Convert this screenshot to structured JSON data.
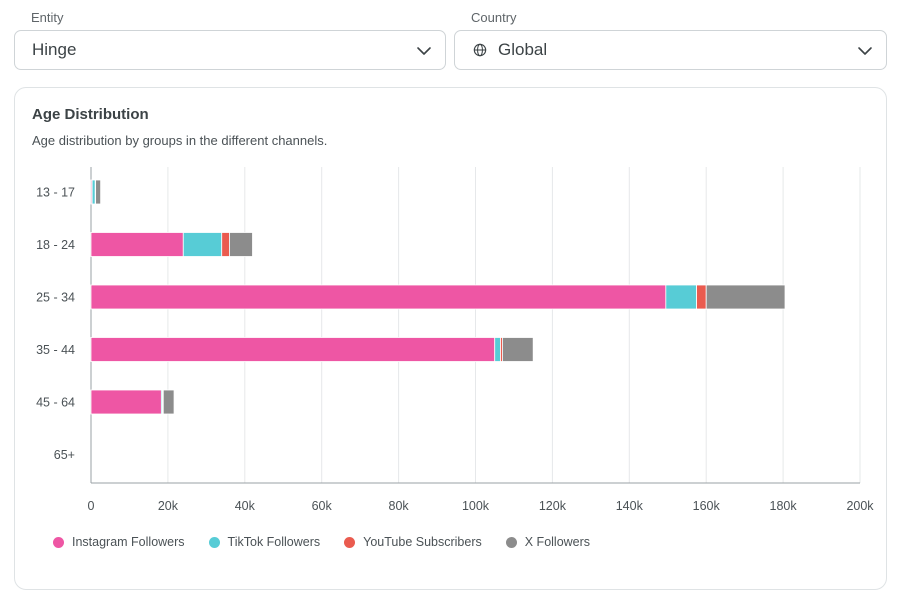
{
  "filters": {
    "entity": {
      "label": "Entity",
      "value": "Hinge"
    },
    "country": {
      "label": "Country",
      "value": "Global"
    }
  },
  "icons": {
    "dropdown": "chevron-down-icon",
    "country": "globe-icon"
  },
  "card": {
    "title": "Age Distribution",
    "subtitle": "Age distribution by groups in the different channels."
  },
  "chart_data": {
    "type": "bar",
    "orientation": "horizontal",
    "stacked": true,
    "categories": [
      "13 - 17",
      "18 - 24",
      "25 - 34",
      "35 - 44",
      "45 - 64",
      "65+"
    ],
    "series": [
      {
        "name": "Instagram Followers",
        "color": "#ee56a4",
        "values": [
          300,
          24000,
          149500,
          105000,
          18300,
          0
        ]
      },
      {
        "name": "TikTok Followers",
        "color": "#57ccd6",
        "values": [
          800,
          10000,
          8000,
          1500,
          300,
          0
        ]
      },
      {
        "name": "YouTube Subscribers",
        "color": "#ea5b4f",
        "values": [
          100,
          2000,
          2500,
          500,
          200,
          0
        ]
      },
      {
        "name": "X Followers",
        "color": "#8c8c8c",
        "values": [
          1300,
          6000,
          20500,
          8000,
          2800,
          0
        ]
      }
    ],
    "xlim": [
      0,
      200000
    ],
    "xticks": [
      0,
      20000,
      40000,
      60000,
      80000,
      100000,
      120000,
      140000,
      160000,
      180000,
      200000
    ],
    "xtick_labels": [
      "0",
      "20k",
      "40k",
      "60k",
      "80k",
      "100k",
      "120k",
      "140k",
      "160k",
      "180k",
      "200k"
    ],
    "grid": true,
    "legend_position": "bottom-left"
  }
}
